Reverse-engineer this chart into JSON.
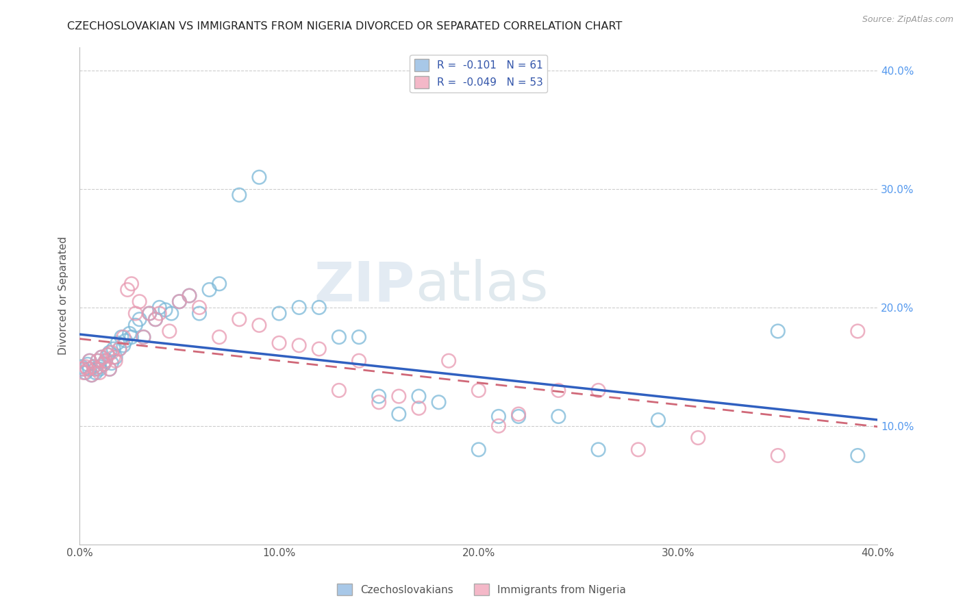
{
  "title": "CZECHOSLOVAKIAN VS IMMIGRANTS FROM NIGERIA DIVORCED OR SEPARATED CORRELATION CHART",
  "source": "Source: ZipAtlas.com",
  "ylabel": "Divorced or Separated",
  "xlabel": "",
  "xlim": [
    0.0,
    0.4
  ],
  "ylim": [
    0.0,
    0.42
  ],
  "xticks": [
    0.0,
    0.1,
    0.2,
    0.3,
    0.4
  ],
  "xtick_labels": [
    "0.0%",
    "10.0%",
    "20.0%",
    "30.0%",
    "40.0%"
  ],
  "yticks_right": [
    0.1,
    0.2,
    0.3,
    0.4
  ],
  "ytick_labels_right": [
    "10.0%",
    "20.0%",
    "30.0%",
    "40.0%"
  ],
  "legend_entries": [
    {
      "label": "R =  -0.101   N = 61",
      "color": "#a8c8e8"
    },
    {
      "label": "R =  -0.049   N = 53",
      "color": "#f4b8c8"
    }
  ],
  "legend_bottom": [
    {
      "label": "Czechoslovakians",
      "color": "#a8c8e8"
    },
    {
      "label": "Immigrants from Nigeria",
      "color": "#f4b8c8"
    }
  ],
  "series_czech": {
    "color": "#7ab8d8",
    "regression_color": "#3060c0",
    "R": -0.101,
    "N": 61,
    "x": [
      0.001,
      0.002,
      0.003,
      0.004,
      0.005,
      0.005,
      0.006,
      0.007,
      0.008,
      0.008,
      0.009,
      0.01,
      0.01,
      0.011,
      0.012,
      0.013,
      0.014,
      0.015,
      0.015,
      0.016,
      0.017,
      0.018,
      0.019,
      0.02,
      0.021,
      0.022,
      0.023,
      0.025,
      0.026,
      0.028,
      0.03,
      0.032,
      0.035,
      0.038,
      0.04,
      0.043,
      0.046,
      0.05,
      0.055,
      0.06,
      0.065,
      0.07,
      0.08,
      0.09,
      0.1,
      0.11,
      0.12,
      0.13,
      0.14,
      0.15,
      0.16,
      0.17,
      0.18,
      0.2,
      0.21,
      0.22,
      0.24,
      0.26,
      0.29,
      0.35,
      0.39
    ],
    "y": [
      0.15,
      0.148,
      0.145,
      0.152,
      0.148,
      0.155,
      0.143,
      0.15,
      0.148,
      0.145,
      0.155,
      0.15,
      0.148,
      0.158,
      0.152,
      0.155,
      0.16,
      0.148,
      0.162,
      0.153,
      0.165,
      0.158,
      0.17,
      0.165,
      0.175,
      0.168,
      0.172,
      0.178,
      0.175,
      0.185,
      0.19,
      0.175,
      0.195,
      0.19,
      0.2,
      0.198,
      0.195,
      0.205,
      0.21,
      0.195,
      0.215,
      0.22,
      0.295,
      0.31,
      0.195,
      0.2,
      0.2,
      0.175,
      0.175,
      0.125,
      0.11,
      0.125,
      0.12,
      0.08,
      0.108,
      0.108,
      0.108,
      0.08,
      0.105,
      0.18,
      0.075
    ]
  },
  "series_nigeria": {
    "color": "#e898b0",
    "regression_color": "#d06878",
    "R": -0.049,
    "N": 53,
    "x": [
      0.001,
      0.002,
      0.003,
      0.004,
      0.005,
      0.006,
      0.007,
      0.008,
      0.009,
      0.01,
      0.011,
      0.012,
      0.013,
      0.014,
      0.015,
      0.016,
      0.017,
      0.018,
      0.02,
      0.022,
      0.024,
      0.026,
      0.028,
      0.03,
      0.032,
      0.035,
      0.038,
      0.04,
      0.045,
      0.05,
      0.055,
      0.06,
      0.07,
      0.08,
      0.09,
      0.1,
      0.11,
      0.12,
      0.13,
      0.14,
      0.15,
      0.16,
      0.17,
      0.185,
      0.2,
      0.21,
      0.22,
      0.24,
      0.26,
      0.28,
      0.31,
      0.35,
      0.39
    ],
    "y": [
      0.148,
      0.145,
      0.15,
      0.148,
      0.155,
      0.143,
      0.15,
      0.148,
      0.155,
      0.145,
      0.158,
      0.152,
      0.155,
      0.16,
      0.148,
      0.162,
      0.158,
      0.155,
      0.165,
      0.175,
      0.215,
      0.22,
      0.195,
      0.205,
      0.175,
      0.195,
      0.19,
      0.195,
      0.18,
      0.205,
      0.21,
      0.2,
      0.175,
      0.19,
      0.185,
      0.17,
      0.168,
      0.165,
      0.13,
      0.155,
      0.12,
      0.125,
      0.115,
      0.155,
      0.13,
      0.1,
      0.11,
      0.13,
      0.13,
      0.08,
      0.09,
      0.075,
      0.18
    ]
  },
  "watermark_zip": "ZIP",
  "watermark_atlas": "atlas",
  "background_color": "#ffffff",
  "grid_color": "#cccccc",
  "title_color": "#222222",
  "title_fontsize": 11.5,
  "axis_label_color": "#555555"
}
